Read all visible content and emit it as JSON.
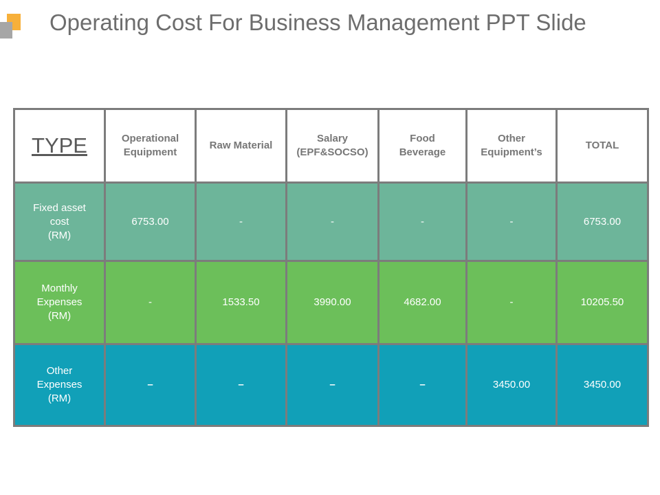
{
  "slide": {
    "title": "Operating Cost For Business Management PPT Slide",
    "colors": {
      "logo_orange": "#f7b03a",
      "logo_gray": "#a6a6a6",
      "header_bg": "#ffffff",
      "grid": "#7c7c7c"
    }
  },
  "table": {
    "headers": [
      "TYPE",
      "Operational\nEquipment",
      "Raw Material",
      "Salary\n(EPF&SOCSO)",
      "Food\nBeverage",
      "Other\nEquipment’s",
      "TOTAL"
    ],
    "rows": [
      {
        "label": "Fixed asset\ncost\n(RM)",
        "values": [
          "6753.00",
          "-",
          "-",
          "-",
          "-",
          "6753.00"
        ],
        "color": "#6db59a"
      },
      {
        "label": "Monthly\nExpenses\n(RM)",
        "values": [
          "-",
          "1533.50",
          "3990.00",
          "4682.00",
          "-",
          "10205.50"
        ],
        "color": "#6cbf5a"
      },
      {
        "label": "Other\nExpenses\n(RM)",
        "values": [
          "–",
          "–",
          "–",
          "–",
          "3450.00",
          "3450.00"
        ],
        "color": "#11a0b8"
      }
    ]
  }
}
